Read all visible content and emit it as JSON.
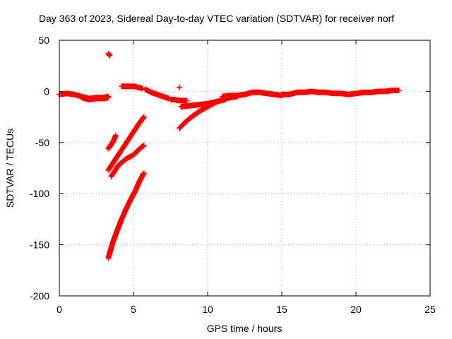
{
  "chart_data": {
    "type": "scatter",
    "title": "Day 363 of 2023, Sidereal Day-to-day VTEC variation (SDTVAR) for receiver norf",
    "xlabel": "GPS time / hours",
    "ylabel": "SDTVAR / TECUs",
    "xlim": [
      0,
      25
    ],
    "ylim": [
      -200,
      50
    ],
    "xticks": [
      0,
      5,
      10,
      15,
      20,
      25
    ],
    "xtick_labels": [
      "0",
      "5",
      "10",
      "15",
      "20",
      "25"
    ],
    "yticks": [
      -200,
      -150,
      -100,
      -50,
      0,
      50
    ],
    "ytick_labels": [
      "-200",
      "-150",
      "-100",
      "-50",
      "0",
      "50"
    ],
    "grid": true,
    "legend": "none",
    "marker": "plus",
    "color": "#ff0000",
    "series": [
      {
        "name": "track-early-flat",
        "x": [
          0.0,
          0.5,
          1.0,
          1.5,
          2.0,
          2.5,
          3.0,
          3.3
        ],
        "y": [
          -3,
          -2,
          -3,
          -5,
          -7,
          -6,
          -6,
          -5
        ]
      },
      {
        "name": "track-flat-low",
        "x": [
          1.5,
          2.0,
          2.5,
          3.0,
          3.3
        ],
        "y": [
          -6,
          -8,
          -7,
          -7,
          -6
        ]
      },
      {
        "name": "point-spike",
        "x": [
          3.3,
          3.4
        ],
        "y": [
          37,
          35
        ]
      },
      {
        "name": "track-short-a",
        "x": [
          3.3,
          3.5,
          3.7,
          3.8
        ],
        "y": [
          -56,
          -52,
          -47,
          -43
        ]
      },
      {
        "name": "track-mid-a",
        "x": [
          3.3,
          3.8,
          4.3,
          4.8,
          5.3,
          5.7
        ],
        "y": [
          -77,
          -66,
          -55,
          -44,
          -33,
          -25
        ]
      },
      {
        "name": "track-mid-b",
        "x": [
          3.5,
          4.0,
          4.5,
          5.0,
          5.5,
          5.7
        ],
        "y": [
          -83,
          -72,
          -66,
          -62,
          -55,
          -53
        ]
      },
      {
        "name": "track-deep",
        "x": [
          3.3,
          3.6,
          3.9,
          4.2,
          4.5,
          4.8,
          5.1,
          5.4,
          5.7
        ],
        "y": [
          -163,
          -148,
          -136,
          -125,
          -115,
          -106,
          -98,
          -88,
          -80
        ]
      },
      {
        "name": "track-plateau",
        "x": [
          4.2,
          4.6,
          5.0,
          5.3,
          5.6
        ],
        "y": [
          5,
          5,
          5,
          4,
          3
        ]
      },
      {
        "name": "track-morning-decline",
        "x": [
          5.8,
          6.2,
          6.6,
          7.0,
          7.4
        ],
        "y": [
          2,
          -1,
          -3,
          -5,
          -7
        ]
      },
      {
        "name": "track-dip",
        "x": [
          7.5,
          7.8,
          8.0,
          8.3,
          8.6
        ],
        "y": [
          -8,
          -8,
          -9,
          -9,
          -9
        ]
      },
      {
        "name": "point-small-spike",
        "x": [
          8.1
        ],
        "y": [
          4
        ]
      },
      {
        "name": "track-recovery-long",
        "x": [
          8.1,
          8.5,
          9.0,
          9.5,
          10.0,
          10.5,
          11.0,
          11.5,
          12.0
        ],
        "y": [
          -36,
          -30,
          -24,
          -19,
          -15,
          -11,
          -8,
          -6,
          -5
        ]
      },
      {
        "name": "track-recovery-flat",
        "x": [
          8.2,
          8.8,
          9.4,
          10.0,
          10.6,
          11.2
        ],
        "y": [
          -15,
          -14,
          -13,
          -12,
          -10,
          -8
        ]
      },
      {
        "name": "track-midday",
        "x": [
          11.0,
          11.5,
          12.0,
          12.5,
          13.0,
          13.5,
          14.0,
          14.5,
          15.0
        ],
        "y": [
          -5,
          -4,
          -4,
          -3,
          -1,
          -1,
          -2,
          -3,
          -4
        ]
      },
      {
        "name": "track-afternoon",
        "x": [
          15.0,
          15.5,
          16.0,
          16.5,
          17.0,
          17.5,
          18.0,
          18.5
        ],
        "y": [
          -3,
          -3,
          -1,
          -1,
          0,
          -1,
          -1,
          -2
        ]
      },
      {
        "name": "track-evening",
        "x": [
          18.5,
          19.0,
          19.5,
          20.0,
          20.5,
          21.0,
          21.5,
          22.0,
          22.5,
          22.9
        ],
        "y": [
          -2,
          -2,
          -3,
          -2,
          -1,
          -1,
          0,
          0,
          1,
          1
        ]
      }
    ]
  }
}
